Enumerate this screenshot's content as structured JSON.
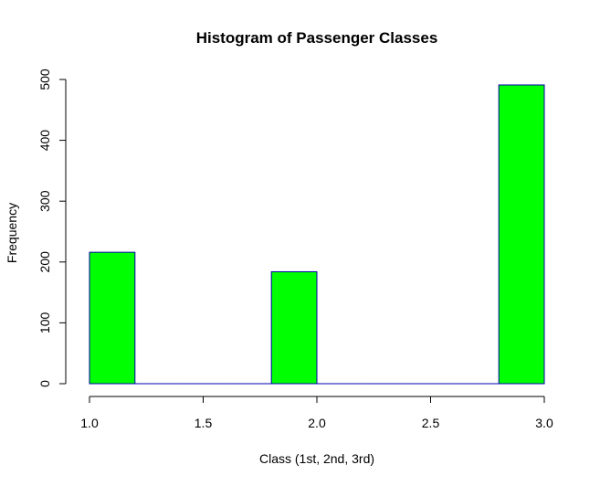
{
  "chart_data": {
    "type": "bar",
    "title": "Histogram of Passenger Classes",
    "xlabel": "Class (1st, 2nd, 3rd)",
    "ylabel": "Frequency",
    "xlim": [
      1.0,
      3.0
    ],
    "ylim": [
      0,
      500
    ],
    "x_ticks": [
      "1.0",
      "1.5",
      "2.0",
      "2.5",
      "3.0"
    ],
    "y_ticks": [
      "0",
      "100",
      "200",
      "300",
      "400",
      "500"
    ],
    "bin_width": 0.2,
    "bins": [
      {
        "start": 1.0,
        "end": 1.2,
        "value": 216
      },
      {
        "start": 1.2,
        "end": 1.4,
        "value": 0
      },
      {
        "start": 1.4,
        "end": 1.6,
        "value": 0
      },
      {
        "start": 1.6,
        "end": 1.8,
        "value": 0
      },
      {
        "start": 1.8,
        "end": 2.0,
        "value": 184
      },
      {
        "start": 2.0,
        "end": 2.2,
        "value": 0
      },
      {
        "start": 2.2,
        "end": 2.4,
        "value": 0
      },
      {
        "start": 2.4,
        "end": 2.6,
        "value": 0
      },
      {
        "start": 2.6,
        "end": 2.8,
        "value": 0
      },
      {
        "start": 2.8,
        "end": 3.0,
        "value": 491
      }
    ],
    "colors": {
      "fill": "#00ff00",
      "border": "#0000aa",
      "axis": "#000000"
    },
    "grid": false
  }
}
